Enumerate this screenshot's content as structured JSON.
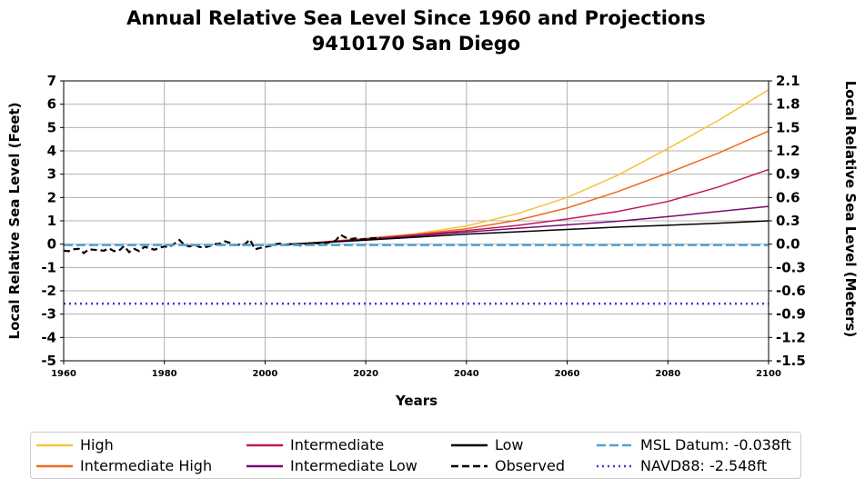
{
  "chart_data": {
    "type": "line",
    "title": "Annual Relative Sea Level Since 1960 and Projections",
    "subtitle": "9410170 San Diego",
    "xlabel": "Years",
    "ylabel_left": "Local Relative Sea Level (Feet)",
    "ylabel_right": "Local Relative Sea Level (Meters)",
    "xlim": [
      1960,
      2100
    ],
    "ylim": [
      -5,
      7
    ],
    "ylim_right": [
      -1.5,
      2.1
    ],
    "x_ticks": [
      "1960",
      "1980",
      "2000",
      "2020",
      "2040",
      "2060",
      "2080",
      "2100"
    ],
    "y_ticks_left": [
      "-5",
      "-4",
      "-3",
      "-2",
      "-1",
      "0",
      "1",
      "2",
      "3",
      "4",
      "5",
      "6",
      "7"
    ],
    "y_ticks_right": [
      "-1.5",
      "-1.2",
      "-0.9",
      "-0.6",
      "-0.3",
      "0.0",
      "0.3",
      "0.6",
      "0.9",
      "1.2",
      "1.5",
      "1.8",
      "2.1"
    ],
    "grid": true,
    "legend_position": "bottom",
    "series": [
      {
        "name": "High",
        "color": "#f5c33b",
        "style": "solid",
        "x": [
          2005,
          2010,
          2020,
          2030,
          2040,
          2050,
          2060,
          2070,
          2080,
          2090,
          2100
        ],
        "y": [
          0.0,
          0.07,
          0.25,
          0.45,
          0.78,
          1.3,
          2.0,
          2.95,
          4.1,
          5.3,
          6.62
        ]
      },
      {
        "name": "Intermediate High",
        "color": "#ee6a1f",
        "style": "solid",
        "x": [
          2005,
          2010,
          2020,
          2030,
          2040,
          2050,
          2060,
          2070,
          2080,
          2090,
          2100
        ],
        "y": [
          0.0,
          0.07,
          0.24,
          0.42,
          0.66,
          1.02,
          1.55,
          2.25,
          3.05,
          3.9,
          4.85
        ]
      },
      {
        "name": "Intermediate",
        "color": "#c2185b",
        "style": "solid",
        "x": [
          2005,
          2010,
          2020,
          2030,
          2040,
          2050,
          2060,
          2070,
          2080,
          2090,
          2100
        ],
        "y": [
          0.0,
          0.06,
          0.22,
          0.39,
          0.58,
          0.8,
          1.08,
          1.4,
          1.83,
          2.45,
          3.2
        ]
      },
      {
        "name": "Intermediate Low",
        "color": "#7b0a72",
        "style": "solid",
        "x": [
          2005,
          2010,
          2020,
          2030,
          2040,
          2050,
          2060,
          2070,
          2080,
          2090,
          2100
        ],
        "y": [
          0.0,
          0.06,
          0.2,
          0.35,
          0.52,
          0.68,
          0.83,
          0.98,
          1.18,
          1.4,
          1.62
        ]
      },
      {
        "name": "Low",
        "color": "#000000",
        "style": "solid",
        "x": [
          2005,
          2010,
          2020,
          2030,
          2040,
          2050,
          2060,
          2070,
          2080,
          2090,
          2100
        ],
        "y": [
          0.0,
          0.05,
          0.17,
          0.3,
          0.43,
          0.53,
          0.63,
          0.73,
          0.81,
          0.9,
          1.0
        ]
      },
      {
        "name": "Observed",
        "color": "#000000",
        "style": "dashed",
        "x": [
          1960,
          1961,
          1962,
          1963,
          1964,
          1965,
          1966,
          1967,
          1968,
          1969,
          1970,
          1971,
          1972,
          1973,
          1974,
          1975,
          1976,
          1977,
          1978,
          1979,
          1980,
          1981,
          1982,
          1983,
          1984,
          1985,
          1986,
          1987,
          1988,
          1989,
          1990,
          1991,
          1992,
          1993,
          1994,
          1995,
          1996,
          1997,
          1998,
          1999,
          2000,
          2001,
          2002,
          2003,
          2004,
          2005,
          2006,
          2007,
          2008,
          2009,
          2010,
          2011,
          2012,
          2013,
          2014,
          2015,
          2016,
          2017,
          2018,
          2019,
          2020,
          2021,
          2022,
          2023
        ],
        "y": [
          -0.28,
          -0.3,
          -0.22,
          -0.2,
          -0.38,
          -0.22,
          -0.24,
          -0.26,
          -0.28,
          -0.18,
          -0.3,
          -0.28,
          -0.08,
          -0.34,
          -0.2,
          -0.3,
          -0.12,
          -0.16,
          -0.24,
          -0.16,
          -0.1,
          -0.12,
          0.02,
          0.18,
          -0.04,
          -0.1,
          -0.02,
          -0.12,
          -0.14,
          -0.08,
          0.0,
          0.02,
          0.12,
          0.06,
          -0.04,
          -0.02,
          0.0,
          0.2,
          -0.22,
          -0.16,
          -0.12,
          -0.08,
          0.0,
          0.02,
          -0.02,
          0.0,
          -0.02,
          -0.06,
          0.0,
          0.02,
          0.06,
          0.0,
          0.04,
          0.1,
          0.15,
          0.4,
          0.28,
          0.22,
          0.25,
          0.2,
          0.22,
          0.25,
          0.26,
          0.27
        ]
      },
      {
        "name": "MSL Datum: -0.038ft",
        "color": "#4fa3d1",
        "style": "dashed",
        "y": -0.038
      },
      {
        "name": "NAVD88: -2.548ft",
        "color": "#3b3bd4",
        "style": "dotted",
        "y": -2.548
      }
    ]
  },
  "legend": {
    "items": [
      "High",
      "Intermediate High",
      "Intermediate",
      "Intermediate Low",
      "Low",
      "Observed",
      "MSL Datum: -0.038ft",
      "NAVD88: -2.548ft"
    ]
  }
}
